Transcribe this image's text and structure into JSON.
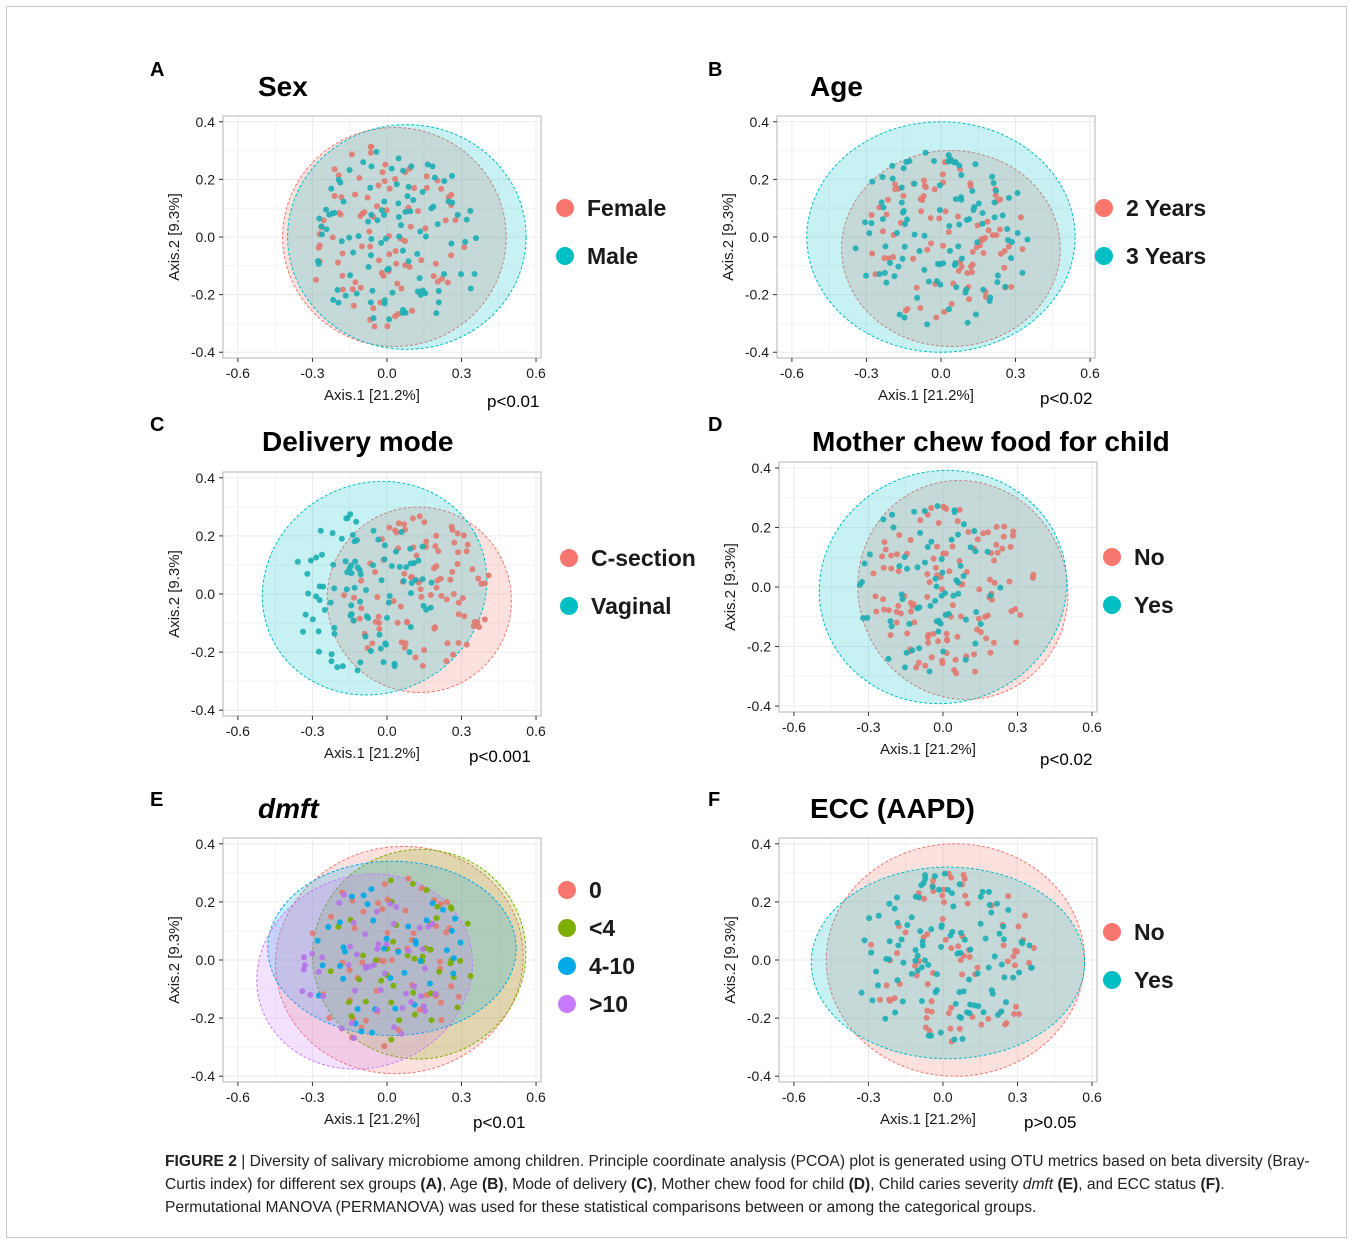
{
  "figure": {
    "caption": {
      "lead": "FIGURE 2",
      "sep": " | ",
      "p1": "Diversity of salivary microbiome among children. Principle coordinate analysis (PCOA) plot is generated using OTU metrics based on beta diversity (Bray-Curtis index) for different sex groups ",
      "rA": "(A)",
      "p2": ", Age ",
      "rB": "(B)",
      "p3": ", Mode of delivery ",
      "rC": "(C)",
      "p4": ", Mother chew food for child ",
      "rD": "(D)",
      "p5": ", Child caries severity ",
      "dmft": "dmft",
      "p6": " ",
      "rE": "(E)",
      "p7": ", and ECC status ",
      "rF": "(F)",
      "p8": ". Permutational MANOVA (PERMANOVA) was used for these statistical comparisons between or among the categorical groups."
    }
  },
  "colors": {
    "red": "#F8766D",
    "green": "#7CAE00",
    "blue": "#00A9E8",
    "purple": "#C77CFF",
    "teal": "#00BFC4",
    "point_red": "#E07B72",
    "point_teal": "#1EAFB4"
  },
  "chart_data": [
    {
      "panel": "A",
      "type": "scatter",
      "title": "Sex",
      "title_italic": false,
      "xlabel": "Axis.1 [21.2%]",
      "ylabel": "Axis.2 [9.3%]",
      "xlim": [
        -0.66,
        0.62
      ],
      "ylim": [
        -0.42,
        0.42
      ],
      "xticks": [
        -0.6,
        -0.3,
        0.0,
        0.3,
        0.6
      ],
      "xtick_labels": [
        "-0.6",
        "-0.3",
        "0.0",
        "0.3",
        "0.6"
      ],
      "yticks": [
        -0.4,
        -0.2,
        0.0,
        0.2,
        0.4
      ],
      "ytick_labels": [
        "-0.4",
        "-0.2",
        "0.0",
        "0.2",
        "0.4"
      ],
      "pvalue": "p<0.01",
      "legend_position": "right",
      "grid": true,
      "series": [
        {
          "name": "Female",
          "color": "#F8766D",
          "point_color": "#E07B72",
          "ellipse": {
            "cx": 0.03,
            "cy": 0.0,
            "rx": 0.45,
            "ry": 0.38
          },
          "seed": 11,
          "n": 90,
          "region": {
            "cx": 0.0,
            "cy": 0.0,
            "rx": 0.34,
            "ry": 0.32
          }
        },
        {
          "name": "Male",
          "color": "#00BFC4",
          "point_color": "#1EAFB4",
          "ellipse": {
            "cx": 0.08,
            "cy": 0.0,
            "rx": 0.48,
            "ry": 0.39
          },
          "seed": 27,
          "n": 100,
          "region": {
            "cx": 0.04,
            "cy": 0.0,
            "rx": 0.36,
            "ry": 0.32
          }
        }
      ]
    },
    {
      "panel": "B",
      "type": "scatter",
      "title": "Age",
      "title_italic": false,
      "xlabel": "Axis.1 [21.2%]",
      "ylabel": "Axis.2 [9.3%]",
      "xlim": [
        -0.66,
        0.62
      ],
      "ylim": [
        -0.42,
        0.42
      ],
      "xticks": [
        -0.6,
        -0.3,
        0.0,
        0.3,
        0.6
      ],
      "xtick_labels": [
        "-0.6",
        "-0.3",
        "0.0",
        "0.3",
        "0.6"
      ],
      "yticks": [
        -0.4,
        -0.2,
        0.0,
        0.2,
        0.4
      ],
      "ytick_labels": [
        "-0.4",
        "-0.2",
        "0.0",
        "0.2",
        "0.4"
      ],
      "pvalue": "p<0.02",
      "legend_position": "right",
      "grid": true,
      "series": [
        {
          "name": "2 Years",
          "color": "#F8766D",
          "point_color": "#E07B72",
          "ellipse": {
            "cx": 0.04,
            "cy": -0.04,
            "rx": 0.44,
            "ry": 0.34
          },
          "seed": 41,
          "n": 85,
          "region": {
            "cx": 0.02,
            "cy": -0.02,
            "rx": 0.32,
            "ry": 0.28
          }
        },
        {
          "name": "3 Years",
          "color": "#00BFC4",
          "point_color": "#1EAFB4",
          "ellipse": {
            "cx": 0.0,
            "cy": 0.0,
            "rx": 0.54,
            "ry": 0.4
          },
          "seed": 53,
          "n": 105,
          "region": {
            "cx": 0.0,
            "cy": 0.0,
            "rx": 0.36,
            "ry": 0.32
          }
        }
      ]
    },
    {
      "panel": "C",
      "type": "scatter",
      "title": "Delivery mode",
      "title_italic": false,
      "xlabel": "Axis.1 [21.2%]",
      "ylabel": "Axis.2 [9.3%]",
      "xlim": [
        -0.66,
        0.62
      ],
      "ylim": [
        -0.42,
        0.42
      ],
      "xticks": [
        -0.6,
        -0.3,
        0.0,
        0.3,
        0.6
      ],
      "xtick_labels": [
        "-0.6",
        "-0.3",
        "0.0",
        "0.3",
        "0.6"
      ],
      "yticks": [
        -0.4,
        -0.2,
        0.0,
        0.2,
        0.4
      ],
      "ytick_labels": [
        "-0.4",
        "-0.2",
        "0.0",
        "0.2",
        "0.4"
      ],
      "pvalue": "p<0.001",
      "legend_position": "right",
      "grid": true,
      "series": [
        {
          "name": "C-section",
          "color": "#F8766D",
          "point_color": "#E07B72",
          "ellipse": {
            "cx": 0.13,
            "cy": -0.02,
            "rx": 0.37,
            "ry": 0.32,
            "rot": -25
          },
          "seed": 67,
          "n": 95,
          "region": {
            "cx": 0.12,
            "cy": 0.0,
            "rx": 0.3,
            "ry": 0.27
          }
        },
        {
          "name": "Vaginal",
          "color": "#00BFC4",
          "point_color": "#1EAFB4",
          "ellipse": {
            "cx": -0.05,
            "cy": 0.02,
            "rx": 0.46,
            "ry": 0.36,
            "rot": -28
          },
          "seed": 79,
          "n": 95,
          "region": {
            "cx": -0.1,
            "cy": 0.0,
            "rx": 0.3,
            "ry": 0.28
          }
        }
      ]
    },
    {
      "panel": "D",
      "type": "scatter",
      "title": "Mother chew food for child",
      "title_italic": false,
      "xlabel": "Axis.1 [21.2%]",
      "ylabel": "Axis.2 [9.3%]",
      "xlim": [
        -0.66,
        0.62
      ],
      "ylim": [
        -0.42,
        0.42
      ],
      "xticks": [
        -0.6,
        -0.3,
        0.0,
        0.3,
        0.6
      ],
      "xtick_labels": [
        "-0.6",
        "-0.3",
        "0.0",
        "0.3",
        "0.6"
      ],
      "yticks": [
        -0.4,
        -0.2,
        0.0,
        0.2,
        0.4
      ],
      "ytick_labels": [
        "-0.4",
        "-0.2",
        "0.0",
        "0.2",
        "0.4"
      ],
      "pvalue": "p<0.02",
      "legend_position": "right",
      "grid": true,
      "series": [
        {
          "name": "No",
          "color": "#F8766D",
          "point_color": "#E07B72",
          "ellipse": {
            "cx": 0.08,
            "cy": -0.01,
            "rx": 0.42,
            "ry": 0.37,
            "rot": -20
          },
          "seed": 83,
          "n": 120,
          "region": {
            "cx": 0.04,
            "cy": 0.0,
            "rx": 0.34,
            "ry": 0.3
          }
        },
        {
          "name": "Yes",
          "color": "#00BFC4",
          "point_color": "#1EAFB4",
          "ellipse": {
            "cx": 0.0,
            "cy": 0.0,
            "rx": 0.5,
            "ry": 0.39,
            "rot": -15
          },
          "seed": 97,
          "n": 70,
          "region": {
            "cx": -0.06,
            "cy": 0.0,
            "rx": 0.3,
            "ry": 0.3
          }
        }
      ]
    },
    {
      "panel": "E",
      "type": "scatter",
      "title": "dmft",
      "title_italic": true,
      "xlabel": "Axis.1 [21.2%]",
      "ylabel": "Axis.2 [9.3%]",
      "xlim": [
        -0.66,
        0.62
      ],
      "ylim": [
        -0.42,
        0.42
      ],
      "xticks": [
        -0.6,
        -0.3,
        0.0,
        0.3,
        0.6
      ],
      "xtick_labels": [
        "-0.6",
        "-0.3",
        "0.0",
        "0.3",
        "0.6"
      ],
      "yticks": [
        -0.4,
        -0.2,
        0.0,
        0.2,
        0.4
      ],
      "ytick_labels": [
        "-0.4",
        "-0.2",
        "0.0",
        "0.2",
        "0.4"
      ],
      "pvalue": "p<0.01",
      "legend_position": "right",
      "grid": true,
      "series": [
        {
          "name": "0",
          "color": "#F8766D",
          "point_color": "#E07B72",
          "ellipse": {
            "cx": 0.05,
            "cy": 0.0,
            "rx": 0.5,
            "ry": 0.39,
            "rot": -10
          },
          "seed": 101,
          "n": 55,
          "region": {
            "cx": 0.0,
            "cy": 0.0,
            "rx": 0.34,
            "ry": 0.3
          }
        },
        {
          "name": "<4",
          "color": "#7CAE00",
          "point_color": "#7CAE00",
          "ellipse": {
            "cx": 0.13,
            "cy": 0.02,
            "rx": 0.43,
            "ry": 0.36,
            "rot": -18
          },
          "seed": 113,
          "n": 45,
          "region": {
            "cx": 0.06,
            "cy": 0.0,
            "rx": 0.3,
            "ry": 0.28
          }
        },
        {
          "name": "4-10",
          "color": "#00A9E8",
          "point_color": "#00A9E8",
          "ellipse": {
            "cx": 0.02,
            "cy": 0.04,
            "rx": 0.5,
            "ry": 0.3
          },
          "seed": 127,
          "n": 40,
          "region": {
            "cx": 0.0,
            "cy": 0.0,
            "rx": 0.32,
            "ry": 0.28
          }
        },
        {
          "name": ">10",
          "color": "#C77CFF",
          "point_color": "#B475E6",
          "ellipse": {
            "cx": -0.09,
            "cy": -0.04,
            "rx": 0.44,
            "ry": 0.33,
            "rot": -20
          },
          "seed": 131,
          "n": 50,
          "region": {
            "cx": -0.06,
            "cy": -0.02,
            "rx": 0.3,
            "ry": 0.28
          }
        }
      ]
    },
    {
      "panel": "F",
      "type": "scatter",
      "title": "ECC (AAPD)",
      "title_italic": false,
      "xlabel": "Axis.1 [21.2%]",
      "ylabel": "Axis.2 [9.3%]",
      "xlim": [
        -0.66,
        0.62
      ],
      "ylim": [
        -0.42,
        0.42
      ],
      "xticks": [
        -0.6,
        -0.3,
        0.0,
        0.3,
        0.6
      ],
      "xtick_labels": [
        "-0.6",
        "-0.3",
        "0.0",
        "0.3",
        "0.6"
      ],
      "yticks": [
        -0.4,
        -0.2,
        0.0,
        0.2,
        0.4
      ],
      "ytick_labels": [
        "-0.4",
        "-0.2",
        "0.0",
        "0.2",
        "0.4"
      ],
      "pvalue": "p>0.05",
      "legend_position": "right",
      "grid": true,
      "series": [
        {
          "name": "No",
          "color": "#F8766D",
          "point_color": "#E07B72",
          "ellipse": {
            "cx": 0.05,
            "cy": 0.0,
            "rx": 0.52,
            "ry": 0.4
          },
          "seed": 139,
          "n": 80,
          "region": {
            "cx": 0.04,
            "cy": 0.0,
            "rx": 0.34,
            "ry": 0.3
          }
        },
        {
          "name": "Yes",
          "color": "#00BFC4",
          "point_color": "#1EAFB4",
          "ellipse": {
            "cx": 0.02,
            "cy": -0.01,
            "rx": 0.55,
            "ry": 0.33
          },
          "seed": 149,
          "n": 110,
          "region": {
            "cx": 0.0,
            "cy": 0.0,
            "rx": 0.36,
            "ry": 0.3
          }
        }
      ]
    }
  ]
}
